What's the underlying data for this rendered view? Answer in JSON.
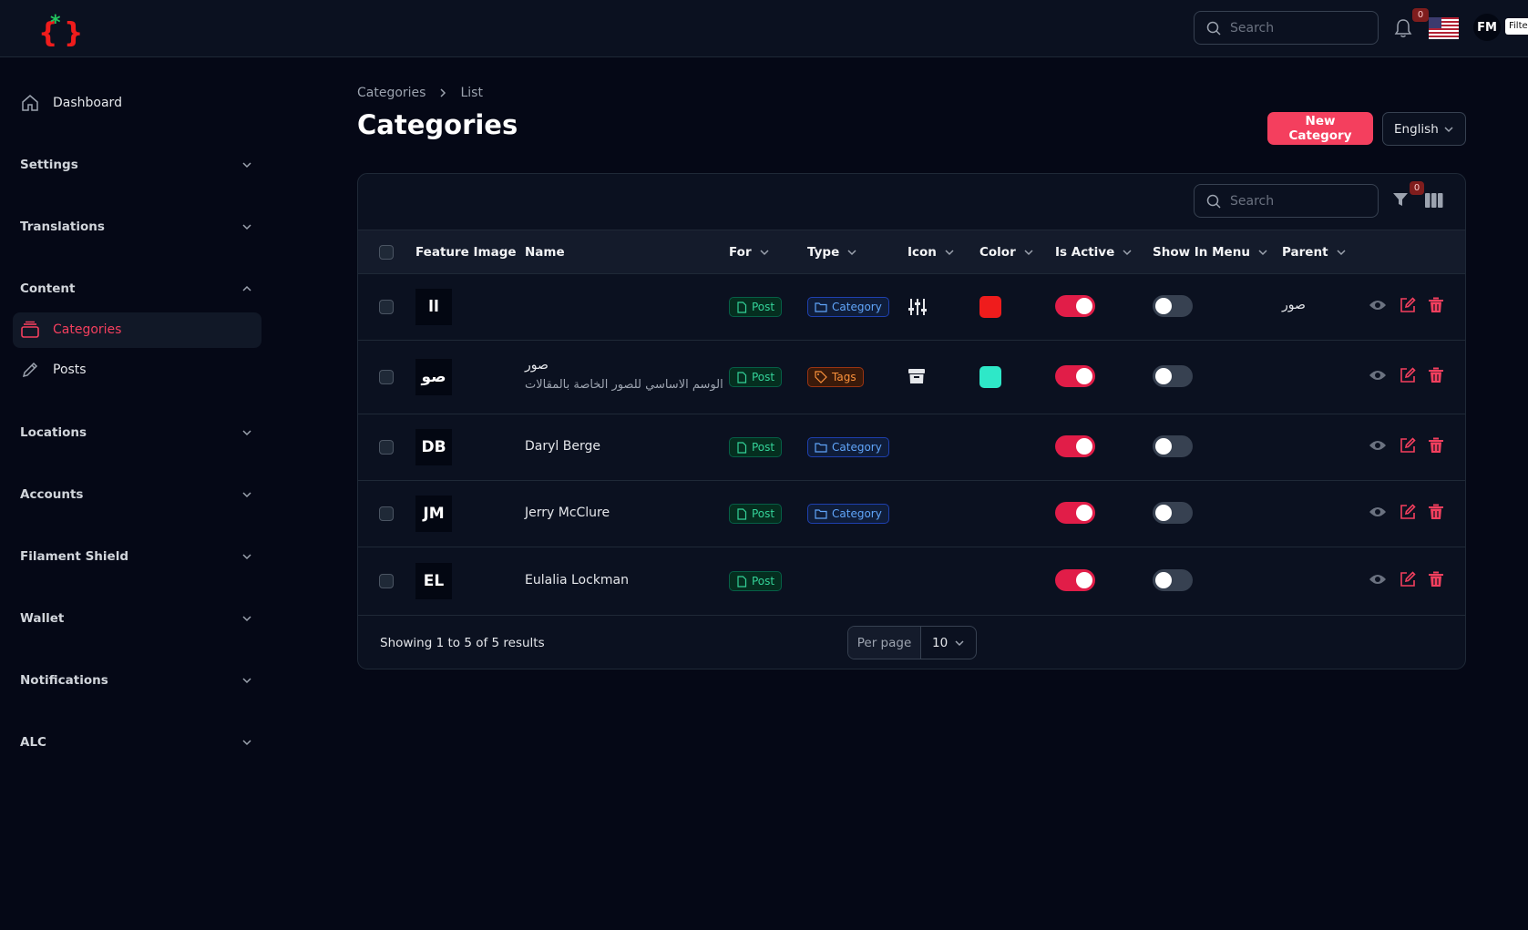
{
  "header": {
    "search_placeholder": "Search",
    "notifications_count": "0",
    "user_initials": "FM",
    "filter_tag": "Filte"
  },
  "sidebar": {
    "dashboard": "Dashboard",
    "groups": {
      "settings": "Settings",
      "translations": "Translations",
      "content": "Content",
      "locations": "Locations",
      "accounts": "Accounts",
      "filament_shield": "Filament Shield",
      "wallet": "Wallet",
      "notifications": "Notifications",
      "alc": "ALC"
    },
    "content_items": {
      "categories": "Categories",
      "posts": "Posts"
    }
  },
  "breadcrumb": {
    "root": "Categories",
    "current": "List"
  },
  "page_title": "Categories",
  "actions": {
    "new_category": "New Category",
    "language": "English"
  },
  "table": {
    "search_placeholder": "Search",
    "filter_count": "0",
    "columns": {
      "feature_image": "Feature Image",
      "name": "Name",
      "for": "For",
      "type": "Type",
      "icon": "Icon",
      "color": "Color",
      "is_active": "Is Active",
      "show_in_menu": "Show In Menu",
      "parent": "Parent"
    },
    "rows": [
      {
        "initials": "ll",
        "name": "",
        "subtitle": "",
        "for": "Post",
        "type": "Category",
        "icon": "sliders-icon",
        "color": "#ef1c1c",
        "is_active": true,
        "show_in_menu": false,
        "parent": "صور"
      },
      {
        "initials": "صو",
        "name": "صور",
        "subtitle": "الوسم الاساسي للصور الخاصة بالمقالات",
        "for": "Post",
        "type": "Tags",
        "icon": "archive-icon",
        "color": "#2ee8c8",
        "is_active": true,
        "show_in_menu": false,
        "parent": ""
      },
      {
        "initials": "DB",
        "name": "Daryl Berge",
        "subtitle": "",
        "for": "Post",
        "type": "Category",
        "icon": "",
        "color": "",
        "is_active": true,
        "show_in_menu": false,
        "parent": ""
      },
      {
        "initials": "JM",
        "name": "Jerry McClure",
        "subtitle": "",
        "for": "Post",
        "type": "Category",
        "icon": "",
        "color": "",
        "is_active": true,
        "show_in_menu": false,
        "parent": ""
      },
      {
        "initials": "EL",
        "name": "Eulalia Lockman",
        "subtitle": "",
        "for": "Post",
        "type": "",
        "icon": "",
        "color": "",
        "is_active": true,
        "show_in_menu": false,
        "parent": ""
      }
    ],
    "footer": {
      "showing": "Showing 1 to 5 of 5 results",
      "per_page_label": "Per page",
      "per_page_value": "10"
    }
  },
  "colors": {
    "accent": "#f43f5e",
    "background": "#050816",
    "surface": "#0b1120"
  }
}
